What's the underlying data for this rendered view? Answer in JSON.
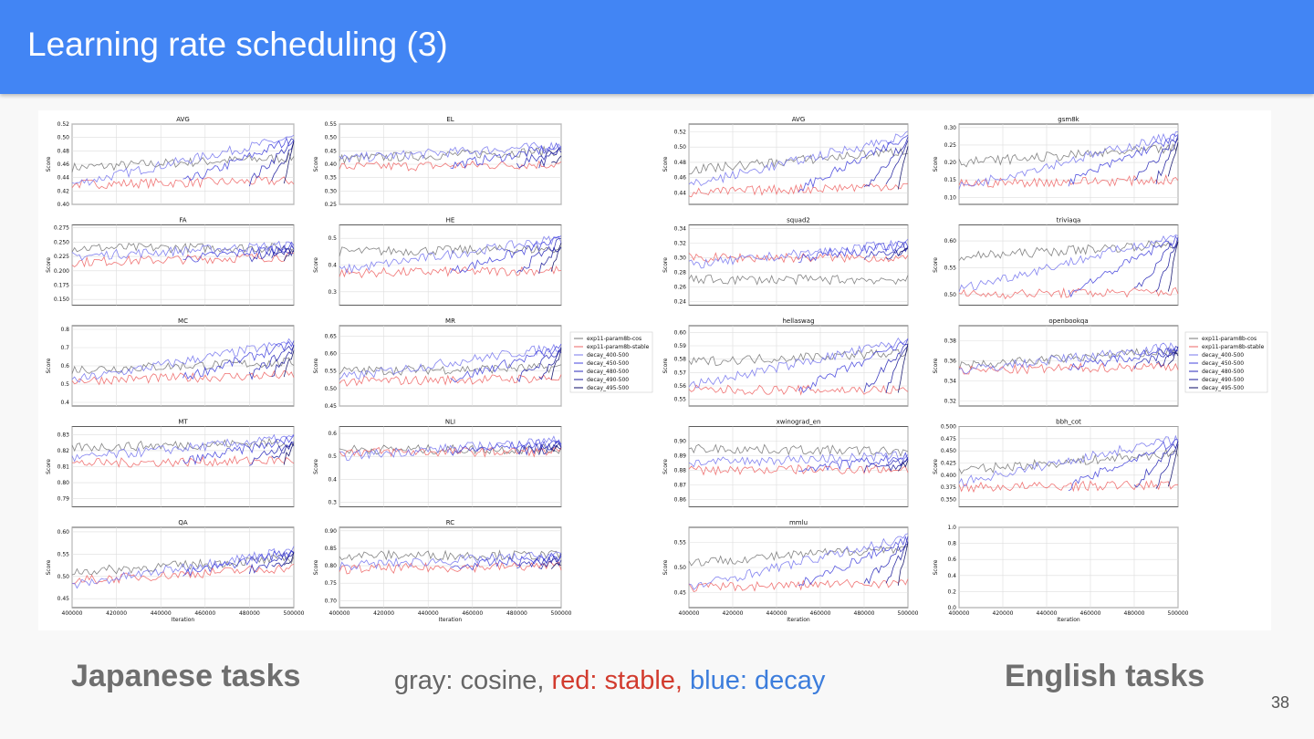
{
  "slide": {
    "title": "Learning rate scheduling (3)",
    "page_number": "38",
    "japanese_label": "Japanese tasks",
    "english_label": "English tasks",
    "color_legend": {
      "gray": "gray: cosine,",
      "red": "red: stable,",
      "blue": "blue: decay",
      "colors": {
        "gray": "#666666",
        "red": "#d23b2e",
        "blue": "#3c7ddc"
      }
    }
  },
  "series_names": [
    "exp11-param8b-cos",
    "exp11-param8b-stable",
    "decay_400-500",
    "decay_450-500",
    "decay_480-500",
    "decay_490-500",
    "decay_495-500"
  ],
  "series_colors": [
    "#777777",
    "#ee6666",
    "#7777ee",
    "#4444dd",
    "#2a2ab8",
    "#1a1a9a",
    "#0a0a66"
  ],
  "x_ticks": [
    "400000",
    "420000",
    "440000",
    "460000",
    "480000",
    "500000"
  ],
  "x_label": "Iteration",
  "y_label": "Score",
  "chart_data": [
    {
      "type": "line",
      "title": "AVG",
      "group": "japanese",
      "ylim": [
        0.4,
        0.52
      ],
      "yticks": [
        "0.40",
        "0.42",
        "0.44",
        "0.46",
        "0.48",
        "0.50",
        "0.52"
      ],
      "series": [
        {
          "name": "exp11-param8b-cos",
          "start": 0.455,
          "end": 0.47
        },
        {
          "name": "exp11-param8b-stable",
          "start": 0.43,
          "end": 0.435
        },
        {
          "name": "decay_400-500",
          "start": 0.43,
          "end": 0.5
        }
      ]
    },
    {
      "type": "line",
      "title": "EL",
      "group": "japanese",
      "ylim": [
        0.25,
        0.55
      ],
      "yticks": [
        "0.25",
        "0.30",
        "0.35",
        "0.40",
        "0.45",
        "0.50",
        "0.55"
      ],
      "series": [
        {
          "name": "exp11-param8b-cos",
          "start": 0.42,
          "end": 0.45
        },
        {
          "name": "exp11-param8b-stable",
          "start": 0.39,
          "end": 0.4
        },
        {
          "name": "decay_400-500",
          "start": 0.42,
          "end": 0.47
        }
      ]
    },
    {
      "type": "line",
      "title": "FA",
      "group": "japanese",
      "ylim": [
        0.14,
        0.28
      ],
      "yticks": [
        "0.150",
        "0.175",
        "0.200",
        "0.225",
        "0.250",
        "0.275"
      ],
      "series": [
        {
          "name": "exp11-param8b-cos",
          "start": 0.24,
          "end": 0.24
        },
        {
          "name": "exp11-param8b-stable",
          "start": 0.215,
          "end": 0.225
        },
        {
          "name": "decay_400-500",
          "start": 0.225,
          "end": 0.245
        }
      ]
    },
    {
      "type": "line",
      "title": "HE",
      "group": "japanese",
      "ylim": [
        0.25,
        0.55
      ],
      "yticks": [
        "0.3",
        "0.4",
        "0.5"
      ],
      "series": [
        {
          "name": "exp11-param8b-cos",
          "start": 0.45,
          "end": 0.46
        },
        {
          "name": "exp11-param8b-stable",
          "start": 0.37,
          "end": 0.38
        },
        {
          "name": "decay_400-500",
          "start": 0.38,
          "end": 0.5
        }
      ]
    },
    {
      "type": "line",
      "title": "MC",
      "group": "japanese",
      "ylim": [
        0.38,
        0.82
      ],
      "yticks": [
        "0.4",
        "0.5",
        "0.6",
        "0.7",
        "0.8"
      ],
      "series": [
        {
          "name": "exp11-param8b-cos",
          "start": 0.58,
          "end": 0.62
        },
        {
          "name": "exp11-param8b-stable",
          "start": 0.52,
          "end": 0.55
        },
        {
          "name": "decay_400-500",
          "start": 0.52,
          "end": 0.73
        }
      ]
    },
    {
      "type": "line",
      "title": "MR",
      "group": "japanese",
      "ylim": [
        0.45,
        0.68
      ],
      "yticks": [
        "0.45",
        "0.50",
        "0.55",
        "0.60",
        "0.65"
      ],
      "series": [
        {
          "name": "exp11-param8b-cos",
          "start": 0.55,
          "end": 0.56
        },
        {
          "name": "exp11-param8b-stable",
          "start": 0.52,
          "end": 0.53
        },
        {
          "name": "decay_400-500",
          "start": 0.53,
          "end": 0.62
        }
      ]
    },
    {
      "type": "line",
      "title": "MT",
      "group": "japanese",
      "ylim": [
        0.785,
        0.835
      ],
      "yticks": [
        "0.79",
        "0.80",
        "0.81",
        "0.82",
        "0.83"
      ],
      "series": [
        {
          "name": "exp11-param8b-cos",
          "start": 0.822,
          "end": 0.825
        },
        {
          "name": "exp11-param8b-stable",
          "start": 0.812,
          "end": 0.814
        },
        {
          "name": "decay_400-500",
          "start": 0.815,
          "end": 0.828
        }
      ]
    },
    {
      "type": "line",
      "title": "NLI",
      "group": "japanese",
      "ylim": [
        0.28,
        0.63
      ],
      "yticks": [
        "0.3",
        "0.4",
        "0.5",
        "0.6"
      ],
      "series": [
        {
          "name": "exp11-param8b-cos",
          "start": 0.53,
          "end": 0.53
        },
        {
          "name": "exp11-param8b-stable",
          "start": 0.52,
          "end": 0.52
        },
        {
          "name": "decay_400-500",
          "start": 0.5,
          "end": 0.57
        }
      ]
    },
    {
      "type": "line",
      "title": "QA",
      "group": "japanese",
      "ylim": [
        0.43,
        0.61
      ],
      "yticks": [
        "0.45",
        "0.50",
        "0.55",
        "0.60"
      ],
      "series": [
        {
          "name": "exp11-param8b-cos",
          "start": 0.51,
          "end": 0.54
        },
        {
          "name": "exp11-param8b-stable",
          "start": 0.49,
          "end": 0.52
        },
        {
          "name": "decay_400-500",
          "start": 0.48,
          "end": 0.56
        }
      ]
    },
    {
      "type": "line",
      "title": "RC",
      "group": "japanese",
      "ylim": [
        0.68,
        0.91
      ],
      "yticks": [
        "0.70",
        "0.75",
        "0.80",
        "0.85",
        "0.90"
      ],
      "series": [
        {
          "name": "exp11-param8b-cos",
          "start": 0.83,
          "end": 0.83
        },
        {
          "name": "exp11-param8b-stable",
          "start": 0.79,
          "end": 0.8
        },
        {
          "name": "decay_400-500",
          "start": 0.8,
          "end": 0.83
        }
      ]
    },
    {
      "type": "line",
      "title": "AVG",
      "group": "english",
      "ylim": [
        0.425,
        0.53
      ],
      "yticks": [
        "0.44",
        "0.46",
        "0.48",
        "0.50",
        "0.52"
      ],
      "series": [
        {
          "name": "exp11-param8b-cos",
          "start": 0.47,
          "end": 0.495
        },
        {
          "name": "exp11-param8b-stable",
          "start": 0.44,
          "end": 0.45
        },
        {
          "name": "decay_400-500",
          "start": 0.45,
          "end": 0.515
        }
      ]
    },
    {
      "type": "line",
      "title": "gsm8k",
      "group": "english",
      "ylim": [
        0.08,
        0.31
      ],
      "yticks": [
        "0.10",
        "0.15",
        "0.20",
        "0.25",
        "0.30"
      ],
      "series": [
        {
          "name": "exp11-param8b-cos",
          "start": 0.2,
          "end": 0.24
        },
        {
          "name": "exp11-param8b-stable",
          "start": 0.14,
          "end": 0.15
        },
        {
          "name": "decay_400-500",
          "start": 0.13,
          "end": 0.28
        }
      ]
    },
    {
      "type": "line",
      "title": "squad2",
      "group": "english",
      "ylim": [
        0.235,
        0.345
      ],
      "yticks": [
        "0.24",
        "0.26",
        "0.28",
        "0.30",
        "0.32",
        "0.34"
      ],
      "series": [
        {
          "name": "exp11-param8b-cos",
          "start": 0.27,
          "end": 0.27
        },
        {
          "name": "exp11-param8b-stable",
          "start": 0.3,
          "end": 0.3
        },
        {
          "name": "decay_400-500",
          "start": 0.29,
          "end": 0.32
        }
      ]
    },
    {
      "type": "line",
      "title": "triviaqa",
      "group": "english",
      "ylim": [
        0.48,
        0.63
      ],
      "yticks": [
        "0.50",
        "0.55",
        "0.60"
      ],
      "series": [
        {
          "name": "exp11-param8b-cos",
          "start": 0.57,
          "end": 0.595
        },
        {
          "name": "exp11-param8b-stable",
          "start": 0.5,
          "end": 0.505
        },
        {
          "name": "decay_400-500",
          "start": 0.51,
          "end": 0.61
        }
      ]
    },
    {
      "type": "line",
      "title": "hellaswag",
      "group": "english",
      "ylim": [
        0.545,
        0.605
      ],
      "yticks": [
        "0.55",
        "0.56",
        "0.57",
        "0.58",
        "0.59",
        "0.60"
      ],
      "series": [
        {
          "name": "exp11-param8b-cos",
          "start": 0.578,
          "end": 0.585
        },
        {
          "name": "exp11-param8b-stable",
          "start": 0.557,
          "end": 0.557
        },
        {
          "name": "decay_400-500",
          "start": 0.56,
          "end": 0.594
        }
      ]
    },
    {
      "type": "line",
      "title": "openbookqa",
      "group": "english",
      "ylim": [
        0.315,
        0.395
      ],
      "yticks": [
        "0.32",
        "0.34",
        "0.36",
        "0.38"
      ],
      "series": [
        {
          "name": "exp11-param8b-cos",
          "start": 0.355,
          "end": 0.37
        },
        {
          "name": "exp11-param8b-stable",
          "start": 0.35,
          "end": 0.355
        },
        {
          "name": "decay_400-500",
          "start": 0.35,
          "end": 0.375
        }
      ]
    },
    {
      "type": "line",
      "title": "xwinograd_en",
      "group": "english",
      "ylim": [
        0.855,
        0.91
      ],
      "yticks": [
        "0.86",
        "0.87",
        "0.88",
        "0.89",
        "0.90"
      ],
      "series": [
        {
          "name": "exp11-param8b-cos",
          "start": 0.895,
          "end": 0.893
        },
        {
          "name": "exp11-param8b-stable",
          "start": 0.88,
          "end": 0.881
        },
        {
          "name": "decay_400-500",
          "start": 0.885,
          "end": 0.89
        }
      ]
    },
    {
      "type": "line",
      "title": "bbh_cot",
      "group": "english",
      "ylim": [
        0.335,
        0.5
      ],
      "yticks": [
        "0.350",
        "0.375",
        "0.400",
        "0.425",
        "0.450",
        "0.475",
        "0.500"
      ],
      "series": [
        {
          "name": "exp11-param8b-cos",
          "start": 0.41,
          "end": 0.445
        },
        {
          "name": "exp11-param8b-stable",
          "start": 0.375,
          "end": 0.38
        },
        {
          "name": "decay_400-500",
          "start": 0.385,
          "end": 0.475
        }
      ]
    },
    {
      "type": "line",
      "title": "mmlu",
      "group": "english",
      "ylim": [
        0.42,
        0.58
      ],
      "yticks": [
        "0.45",
        "0.50",
        "0.55"
      ],
      "series": [
        {
          "name": "exp11-param8b-cos",
          "start": 0.51,
          "end": 0.54
        },
        {
          "name": "exp11-param8b-stable",
          "start": 0.46,
          "end": 0.47
        },
        {
          "name": "decay_400-500",
          "start": 0.46,
          "end": 0.56
        }
      ]
    },
    {
      "type": "line",
      "title": "",
      "group": "english",
      "ylim": [
        0.0,
        1.0
      ],
      "yticks": [
        "0.0",
        "0.2",
        "0.4",
        "0.6",
        "0.8",
        "1.0"
      ],
      "series": []
    }
  ]
}
